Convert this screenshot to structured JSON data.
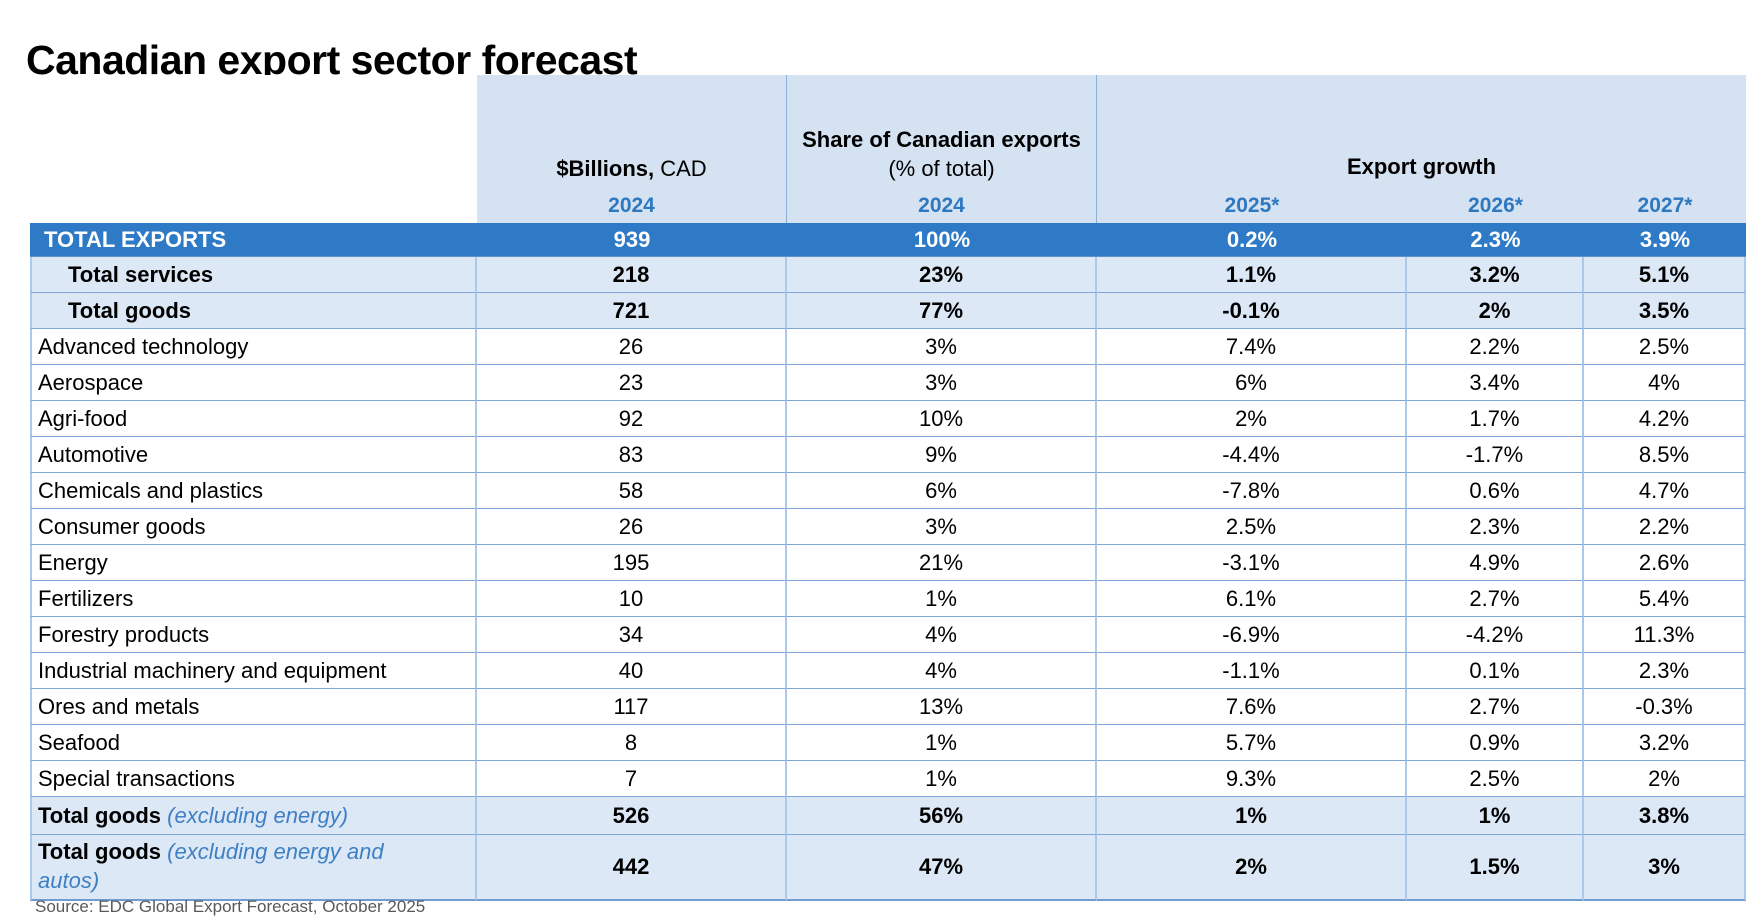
{
  "title": "Canadian export sector forecast",
  "source": "Source: EDC Global Export Forecast, October 2025",
  "colors": {
    "header_bg": "#d5e2f1",
    "subtotal_bg": "#dce8f5",
    "total_row_bg": "#2f7ac6",
    "total_row_text": "#ffffff",
    "year_label_text": "#2e78c0",
    "italic_label_text": "#3f80c4",
    "horizontal_border": "#7ea6d8",
    "vertical_border": "#abc9ec",
    "source_text": "#595959"
  },
  "header": {
    "billions_bold": "$Billions,",
    "billions_rest": " CAD",
    "share_line1": "Share of Canadian exports",
    "share_line2": "(% of total)",
    "growth_title": "Export growth",
    "years": {
      "billions": "2024",
      "share": "2024",
      "y2025": "2025*",
      "y2026": "2026*",
      "y2027": "2027*"
    }
  },
  "rows": [
    {
      "type": "total",
      "label": "TOTAL EXPORTS",
      "values": [
        "939",
        "100%",
        "0.2%",
        "2.3%",
        "3.9%"
      ]
    },
    {
      "type": "subtotal",
      "label": "Total services",
      "values": [
        "218",
        "23%",
        "1.1%",
        "3.2%",
        "5.1%"
      ]
    },
    {
      "type": "subtotal",
      "label": "Total goods",
      "values": [
        "721",
        "77%",
        "-0.1%",
        "2%",
        "3.5%"
      ]
    },
    {
      "type": "sector",
      "label": "Advanced technology",
      "values": [
        "26",
        "3%",
        "7.4%",
        "2.2%",
        "2.5%"
      ]
    },
    {
      "type": "sector",
      "label": "Aerospace",
      "values": [
        "23",
        "3%",
        "6%",
        "3.4%",
        "4%"
      ]
    },
    {
      "type": "sector",
      "label": "Agri-food",
      "values": [
        "92",
        "10%",
        "2%",
        "1.7%",
        "4.2%"
      ]
    },
    {
      "type": "sector",
      "label": "Automotive",
      "values": [
        "83",
        "9%",
        "-4.4%",
        "-1.7%",
        "8.5%"
      ]
    },
    {
      "type": "sector",
      "label": "Chemicals and plastics",
      "values": [
        "58",
        "6%",
        "-7.8%",
        "0.6%",
        "4.7%"
      ]
    },
    {
      "type": "sector",
      "label": "Consumer goods",
      "values": [
        "26",
        "3%",
        "2.5%",
        "2.3%",
        "2.2%"
      ]
    },
    {
      "type": "sector",
      "label": "Energy",
      "values": [
        "195",
        "21%",
        "-3.1%",
        "4.9%",
        "2.6%"
      ]
    },
    {
      "type": "sector",
      "label": "Fertilizers",
      "values": [
        "10",
        "1%",
        "6.1%",
        "2.7%",
        "5.4%"
      ]
    },
    {
      "type": "sector",
      "label": "Forestry products",
      "values": [
        "34",
        "4%",
        "-6.9%",
        "-4.2%",
        "11.3%"
      ]
    },
    {
      "type": "sector",
      "label": "Industrial machinery and equipment",
      "values": [
        "40",
        "4%",
        "-1.1%",
        "0.1%",
        "2.3%"
      ]
    },
    {
      "type": "sector",
      "label": "Ores and metals",
      "values": [
        "117",
        "13%",
        "7.6%",
        "2.7%",
        "-0.3%"
      ]
    },
    {
      "type": "sector",
      "label": "Seafood",
      "values": [
        "8",
        "1%",
        "5.7%",
        "0.9%",
        "3.2%"
      ]
    },
    {
      "type": "sector",
      "label": "Special transactions",
      "values": [
        "7",
        "1%",
        "9.3%",
        "2.5%",
        "2%"
      ]
    },
    {
      "type": "footer",
      "label_bold": "Total goods",
      "label_italic": " (excluding energy)",
      "values": [
        "526",
        "56%",
        "1%",
        "1%",
        "3.8%"
      ]
    },
    {
      "type": "footer tall",
      "label_bold": "Total goods",
      "label_italic": " (excluding energy and autos)",
      "values": [
        "442",
        "47%",
        "2%",
        "1.5%",
        "3%"
      ]
    }
  ]
}
